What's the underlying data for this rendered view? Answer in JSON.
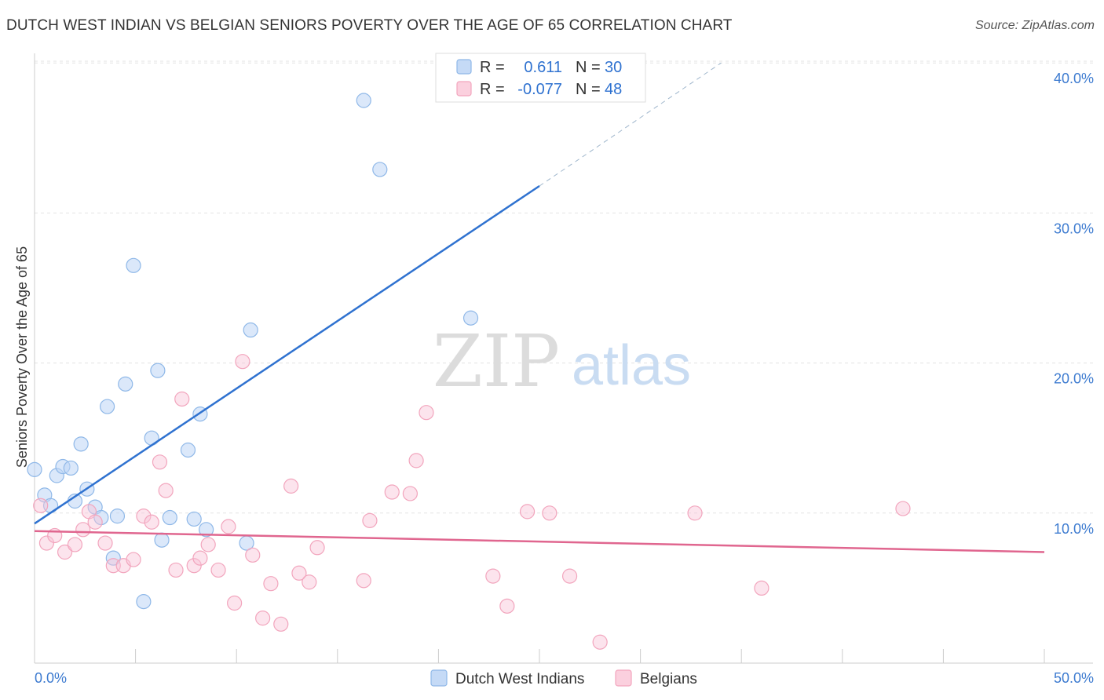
{
  "header": {
    "title": "DUTCH WEST INDIAN VS BELGIAN SENIORS POVERTY OVER THE AGE OF 65 CORRELATION CHART",
    "source": "Source: ZipAtlas.com"
  },
  "watermark": {
    "zip": "ZIP",
    "atlas": "atlas"
  },
  "chart_data": {
    "type": "scatter",
    "title": "DUTCH WEST INDIAN VS BELGIAN SENIORS POVERTY OVER THE AGE OF 65 CORRELATION CHART",
    "ylabel": "Seniors Poverty Over the Age of 65",
    "xlabel": "",
    "xlim": [
      0,
      50
    ],
    "ylim": [
      0,
      41.5
    ],
    "x_tick_labels": [
      "0.0%",
      "50.0%"
    ],
    "y_tick_values": [
      10,
      20,
      30,
      40
    ],
    "y_tick_labels": [
      "10.0%",
      "20.0%",
      "30.0%",
      "40.0%"
    ],
    "grid": true,
    "legend_position": "top-center",
    "stats": [
      {
        "r_label": "R =",
        "r_value": "0.611",
        "n_label": "N =",
        "n_value": "30"
      },
      {
        "r_label": "R =",
        "r_value": "-0.077",
        "n_label": "N =",
        "n_value": "48"
      }
    ],
    "series": [
      {
        "name": "Dutch West Indians",
        "color": "#8fb8e8",
        "line_color": "#2f72d0",
        "trend": {
          "x_start": 0,
          "y_start": 9.3,
          "x_end": 25,
          "y_end": 31.8,
          "dash_x_end": 34,
          "dash_y_end": 40.0
        },
        "points": [
          {
            "x": 0.0,
            "y": 12.9
          },
          {
            "x": 0.5,
            "y": 11.2
          },
          {
            "x": 0.8,
            "y": 10.5
          },
          {
            "x": 1.1,
            "y": 12.5
          },
          {
            "x": 1.4,
            "y": 13.1
          },
          {
            "x": 1.8,
            "y": 13.0
          },
          {
            "x": 2.0,
            "y": 10.8
          },
          {
            "x": 2.3,
            "y": 14.6
          },
          {
            "x": 2.6,
            "y": 11.6
          },
          {
            "x": 3.0,
            "y": 10.4
          },
          {
            "x": 3.3,
            "y": 9.7
          },
          {
            "x": 3.6,
            "y": 17.1
          },
          {
            "x": 3.9,
            "y": 7.0
          },
          {
            "x": 4.1,
            "y": 9.8
          },
          {
            "x": 4.5,
            "y": 18.6
          },
          {
            "x": 4.9,
            "y": 26.5
          },
          {
            "x": 5.4,
            "y": 4.1
          },
          {
            "x": 5.8,
            "y": 15.0
          },
          {
            "x": 6.1,
            "y": 19.5
          },
          {
            "x": 6.3,
            "y": 8.2
          },
          {
            "x": 6.7,
            "y": 9.7
          },
          {
            "x": 7.6,
            "y": 14.2
          },
          {
            "x": 7.9,
            "y": 9.6
          },
          {
            "x": 8.2,
            "y": 16.6
          },
          {
            "x": 8.5,
            "y": 8.9
          },
          {
            "x": 10.5,
            "y": 8.0
          },
          {
            "x": 10.7,
            "y": 22.2
          },
          {
            "x": 16.3,
            "y": 37.5
          },
          {
            "x": 17.1,
            "y": 32.9
          },
          {
            "x": 21.6,
            "y": 23.0
          }
        ]
      },
      {
        "name": "Belgians",
        "color": "#f2a5bd",
        "line_color": "#e0668f",
        "trend": {
          "x_start": 0,
          "y_start": 8.8,
          "x_end": 50,
          "y_end": 7.4
        },
        "points": [
          {
            "x": 0.3,
            "y": 10.5
          },
          {
            "x": 0.6,
            "y": 8.0
          },
          {
            "x": 1.0,
            "y": 8.5
          },
          {
            "x": 1.5,
            "y": 7.4
          },
          {
            "x": 2.0,
            "y": 7.9
          },
          {
            "x": 2.4,
            "y": 8.9
          },
          {
            "x": 2.7,
            "y": 10.1
          },
          {
            "x": 3.0,
            "y": 9.4
          },
          {
            "x": 3.5,
            "y": 8.0
          },
          {
            "x": 3.9,
            "y": 6.5
          },
          {
            "x": 4.4,
            "y": 6.5
          },
          {
            "x": 4.9,
            "y": 6.9
          },
          {
            "x": 5.4,
            "y": 9.8
          },
          {
            "x": 5.8,
            "y": 9.4
          },
          {
            "x": 6.2,
            "y": 13.4
          },
          {
            "x": 6.5,
            "y": 11.5
          },
          {
            "x": 7.0,
            "y": 6.2
          },
          {
            "x": 7.3,
            "y": 17.6
          },
          {
            "x": 7.9,
            "y": 6.5
          },
          {
            "x": 8.2,
            "y": 7.0
          },
          {
            "x": 8.6,
            "y": 7.9
          },
          {
            "x": 9.1,
            "y": 6.2
          },
          {
            "x": 9.6,
            "y": 9.1
          },
          {
            "x": 9.9,
            "y": 4.0
          },
          {
            "x": 10.3,
            "y": 20.1
          },
          {
            "x": 10.8,
            "y": 7.2
          },
          {
            "x": 11.3,
            "y": 3.0
          },
          {
            "x": 11.7,
            "y": 5.3
          },
          {
            "x": 12.2,
            "y": 2.6
          },
          {
            "x": 12.7,
            "y": 11.8
          },
          {
            "x": 13.1,
            "y": 6.0
          },
          {
            "x": 13.6,
            "y": 5.4
          },
          {
            "x": 14.0,
            "y": 7.7
          },
          {
            "x": 16.3,
            "y": 5.5
          },
          {
            "x": 16.6,
            "y": 9.5
          },
          {
            "x": 17.7,
            "y": 11.4
          },
          {
            "x": 18.6,
            "y": 11.3
          },
          {
            "x": 18.9,
            "y": 13.5
          },
          {
            "x": 19.4,
            "y": 16.7
          },
          {
            "x": 22.7,
            "y": 5.8
          },
          {
            "x": 23.4,
            "y": 3.8
          },
          {
            "x": 24.4,
            "y": 10.1
          },
          {
            "x": 25.5,
            "y": 10.0
          },
          {
            "x": 26.5,
            "y": 5.8
          },
          {
            "x": 28.0,
            "y": 1.4
          },
          {
            "x": 32.7,
            "y": 10.0
          },
          {
            "x": 36.0,
            "y": 5.0
          },
          {
            "x": 43.0,
            "y": 10.3
          }
        ]
      }
    ]
  }
}
